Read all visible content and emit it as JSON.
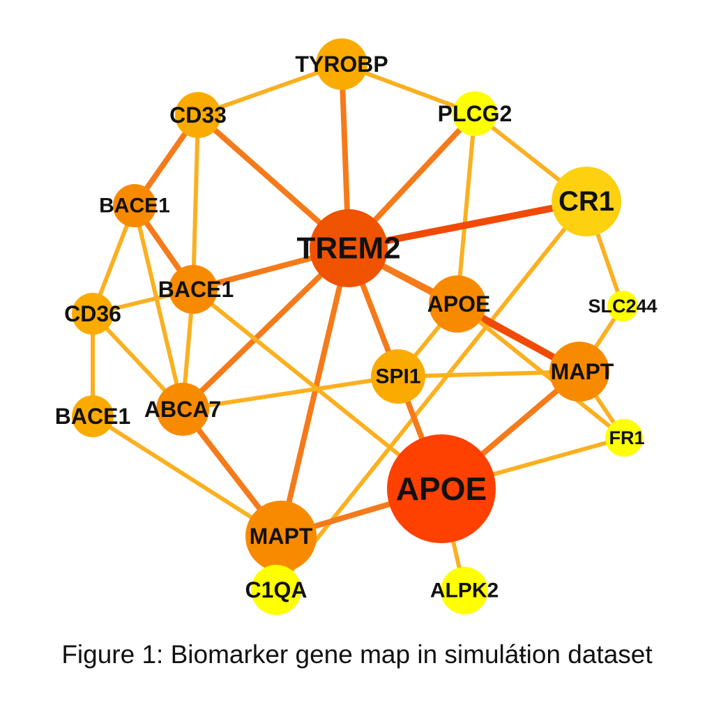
{
  "colors": {
    "node_high": "#fe4000",
    "node_upper": "#f05300",
    "node_mid": "#f88a00",
    "node_midlow": "#fbab00",
    "node_light": "#fdd010",
    "node_low": "#ffff00",
    "edge_strong": "#f04a05",
    "edge_mid": "#f57a1a",
    "edge_weak": "#fbb020"
  },
  "nodes": [
    {
      "id": "tyrobp",
      "label": "TYROBP",
      "level": "midlow"
    },
    {
      "id": "cd33",
      "label": "CD33",
      "level": "midlow"
    },
    {
      "id": "plcg2",
      "label": "PLCG2",
      "level": "low"
    },
    {
      "id": "cr1",
      "label": "CR1",
      "level": "light"
    },
    {
      "id": "bace1_a",
      "label": "BACE1",
      "level": "mid"
    },
    {
      "id": "trem2",
      "label": "TREM2",
      "level": "upper"
    },
    {
      "id": "bace1_b",
      "label": "BACE1",
      "level": "mid"
    },
    {
      "id": "apoe_small",
      "label": "APOE",
      "level": "mid"
    },
    {
      "id": "slc244",
      "label": "SLC244",
      "level": "low"
    },
    {
      "id": "cd36",
      "label": "CD36",
      "level": "midlow"
    },
    {
      "id": "spi1",
      "label": "SPI1",
      "level": "midlow"
    },
    {
      "id": "mapt_right",
      "label": "MAPT",
      "level": "mid"
    },
    {
      "id": "bace1_c",
      "label": "BACE1",
      "level": "midlow"
    },
    {
      "id": "abca7",
      "label": "ABCA7",
      "level": "mid"
    },
    {
      "id": "fr1",
      "label": "FR1",
      "level": "low"
    },
    {
      "id": "apoe_big",
      "label": "APOE",
      "level": "high"
    },
    {
      "id": "mapt_bottom",
      "label": "MAPT",
      "level": "mid"
    },
    {
      "id": "c1qa",
      "label": "C1QA",
      "level": "low"
    },
    {
      "id": "alpk2",
      "label": "ALPK2",
      "level": "low"
    }
  ],
  "edges": [
    {
      "source": "cd33",
      "target": "tyrobp",
      "strength": "weak"
    },
    {
      "source": "tyrobp",
      "target": "plcg2",
      "strength": "weak"
    },
    {
      "source": "tyrobp",
      "target": "trem2",
      "strength": "mid"
    },
    {
      "source": "plcg2",
      "target": "cr1",
      "strength": "weak"
    },
    {
      "source": "plcg2",
      "target": "trem2",
      "strength": "mid"
    },
    {
      "source": "plcg2",
      "target": "apoe_small",
      "strength": "weak"
    },
    {
      "source": "cd33",
      "target": "trem2",
      "strength": "mid"
    },
    {
      "source": "cd33",
      "target": "bace1_a",
      "strength": "mid"
    },
    {
      "source": "cd33",
      "target": "bace1_b",
      "strength": "weak"
    },
    {
      "source": "cr1",
      "target": "trem2",
      "strength": "strong"
    },
    {
      "source": "cr1",
      "target": "slc244",
      "strength": "weak"
    },
    {
      "source": "cr1",
      "target": "c1qa",
      "strength": "weak"
    },
    {
      "source": "bace1_a",
      "target": "bace1_b",
      "strength": "mid"
    },
    {
      "source": "bace1_a",
      "target": "cd36",
      "strength": "weak"
    },
    {
      "source": "bace1_a",
      "target": "abca7",
      "strength": "weak"
    },
    {
      "source": "trem2",
      "target": "bace1_b",
      "strength": "mid"
    },
    {
      "source": "trem2",
      "target": "apoe_small",
      "strength": "mid"
    },
    {
      "source": "trem2",
      "target": "spi1",
      "strength": "mid"
    },
    {
      "source": "trem2",
      "target": "mapt_right",
      "strength": "mid"
    },
    {
      "source": "trem2",
      "target": "abca7",
      "strength": "mid"
    },
    {
      "source": "trem2",
      "target": "mapt_bottom",
      "strength": "mid"
    },
    {
      "source": "bace1_b",
      "target": "cd36",
      "strength": "weak"
    },
    {
      "source": "bace1_b",
      "target": "abca7",
      "strength": "weak"
    },
    {
      "source": "bace1_b",
      "target": "apoe_big",
      "strength": "weak"
    },
    {
      "source": "apoe_small",
      "target": "mapt_right",
      "strength": "strong"
    },
    {
      "source": "apoe_small",
      "target": "spi1",
      "strength": "weak"
    },
    {
      "source": "apoe_small",
      "target": "fr1",
      "strength": "weak"
    },
    {
      "source": "slc244",
      "target": "mapt_right",
      "strength": "weak"
    },
    {
      "source": "cd36",
      "target": "bace1_c",
      "strength": "weak"
    },
    {
      "source": "cd36",
      "target": "abca7",
      "strength": "weak"
    },
    {
      "source": "spi1",
      "target": "abca7",
      "strength": "weak"
    },
    {
      "source": "spi1",
      "target": "mapt_right",
      "strength": "weak"
    },
    {
      "source": "spi1",
      "target": "apoe_big",
      "strength": "mid"
    },
    {
      "source": "mapt_right",
      "target": "fr1",
      "strength": "weak"
    },
    {
      "source": "mapt_right",
      "target": "apoe_big",
      "strength": "mid"
    },
    {
      "source": "bace1_c",
      "target": "mapt_bottom",
      "strength": "weak"
    },
    {
      "source": "abca7",
      "target": "mapt_bottom",
      "strength": "mid"
    },
    {
      "source": "fr1",
      "target": "apoe_big",
      "strength": "weak"
    },
    {
      "source": "apoe_big",
      "target": "mapt_bottom",
      "strength": "mid"
    },
    {
      "source": "apoe_big",
      "target": "alpk2",
      "strength": "weak"
    }
  ],
  "caption": "Figure 1: Biomarker gene map in simuláŧion dataset"
}
